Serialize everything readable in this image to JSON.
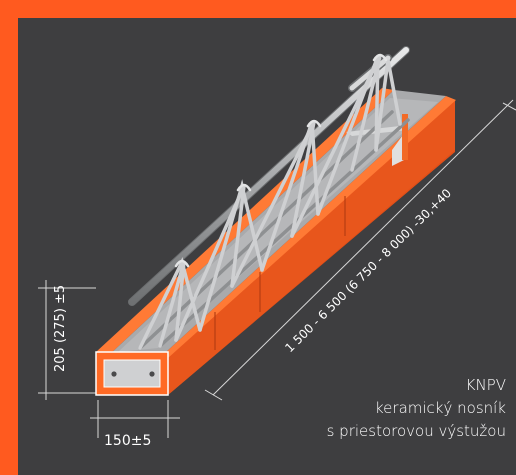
{
  "caption": {
    "code": "KNPV",
    "line1": "keramický nosník",
    "line2": "s priestorovou výstužou"
  },
  "dimensions": {
    "width": "150±5",
    "height": "205 (275) ±5",
    "length": "1 500 - 6 500 (6 750 - 8 000) -30,+40"
  },
  "colors": {
    "frame": "#ff5a1f",
    "background": "#3e3e40",
    "ceramic": "#f05a22",
    "concrete": "#a7a8aa",
    "steel": "#c9cbcd"
  }
}
